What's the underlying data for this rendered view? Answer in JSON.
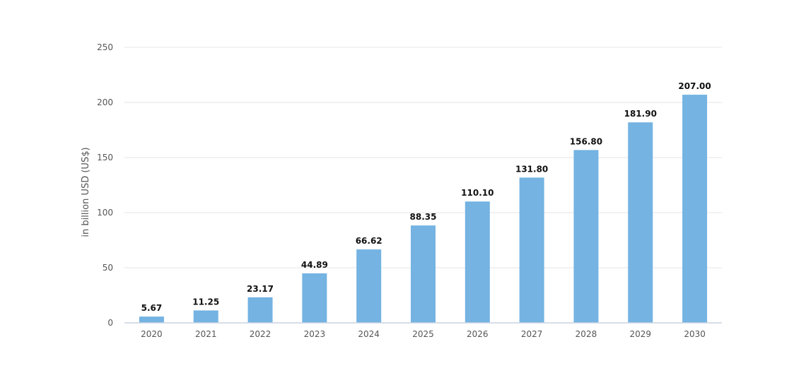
{
  "chart_data": {
    "type": "bar",
    "title": "",
    "xlabel": "",
    "ylabel": "in billion USD (US$)",
    "ylim": [
      0,
      250
    ],
    "yticks": [
      0,
      50,
      100,
      150,
      200,
      250
    ],
    "grid": true,
    "bar_color": "#74b3e2",
    "categories": [
      "2020",
      "2021",
      "2022",
      "2023",
      "2024",
      "2025",
      "2026",
      "2027",
      "2028",
      "2029",
      "2030"
    ],
    "values": [
      5.67,
      11.25,
      23.17,
      44.89,
      66.62,
      88.35,
      110.1,
      131.8,
      156.8,
      181.9,
      207.0
    ],
    "value_labels": [
      "5.67",
      "11.25",
      "23.17",
      "44.89",
      "66.62",
      "88.35",
      "110.10",
      "131.80",
      "156.80",
      "181.90",
      "207.00"
    ]
  }
}
